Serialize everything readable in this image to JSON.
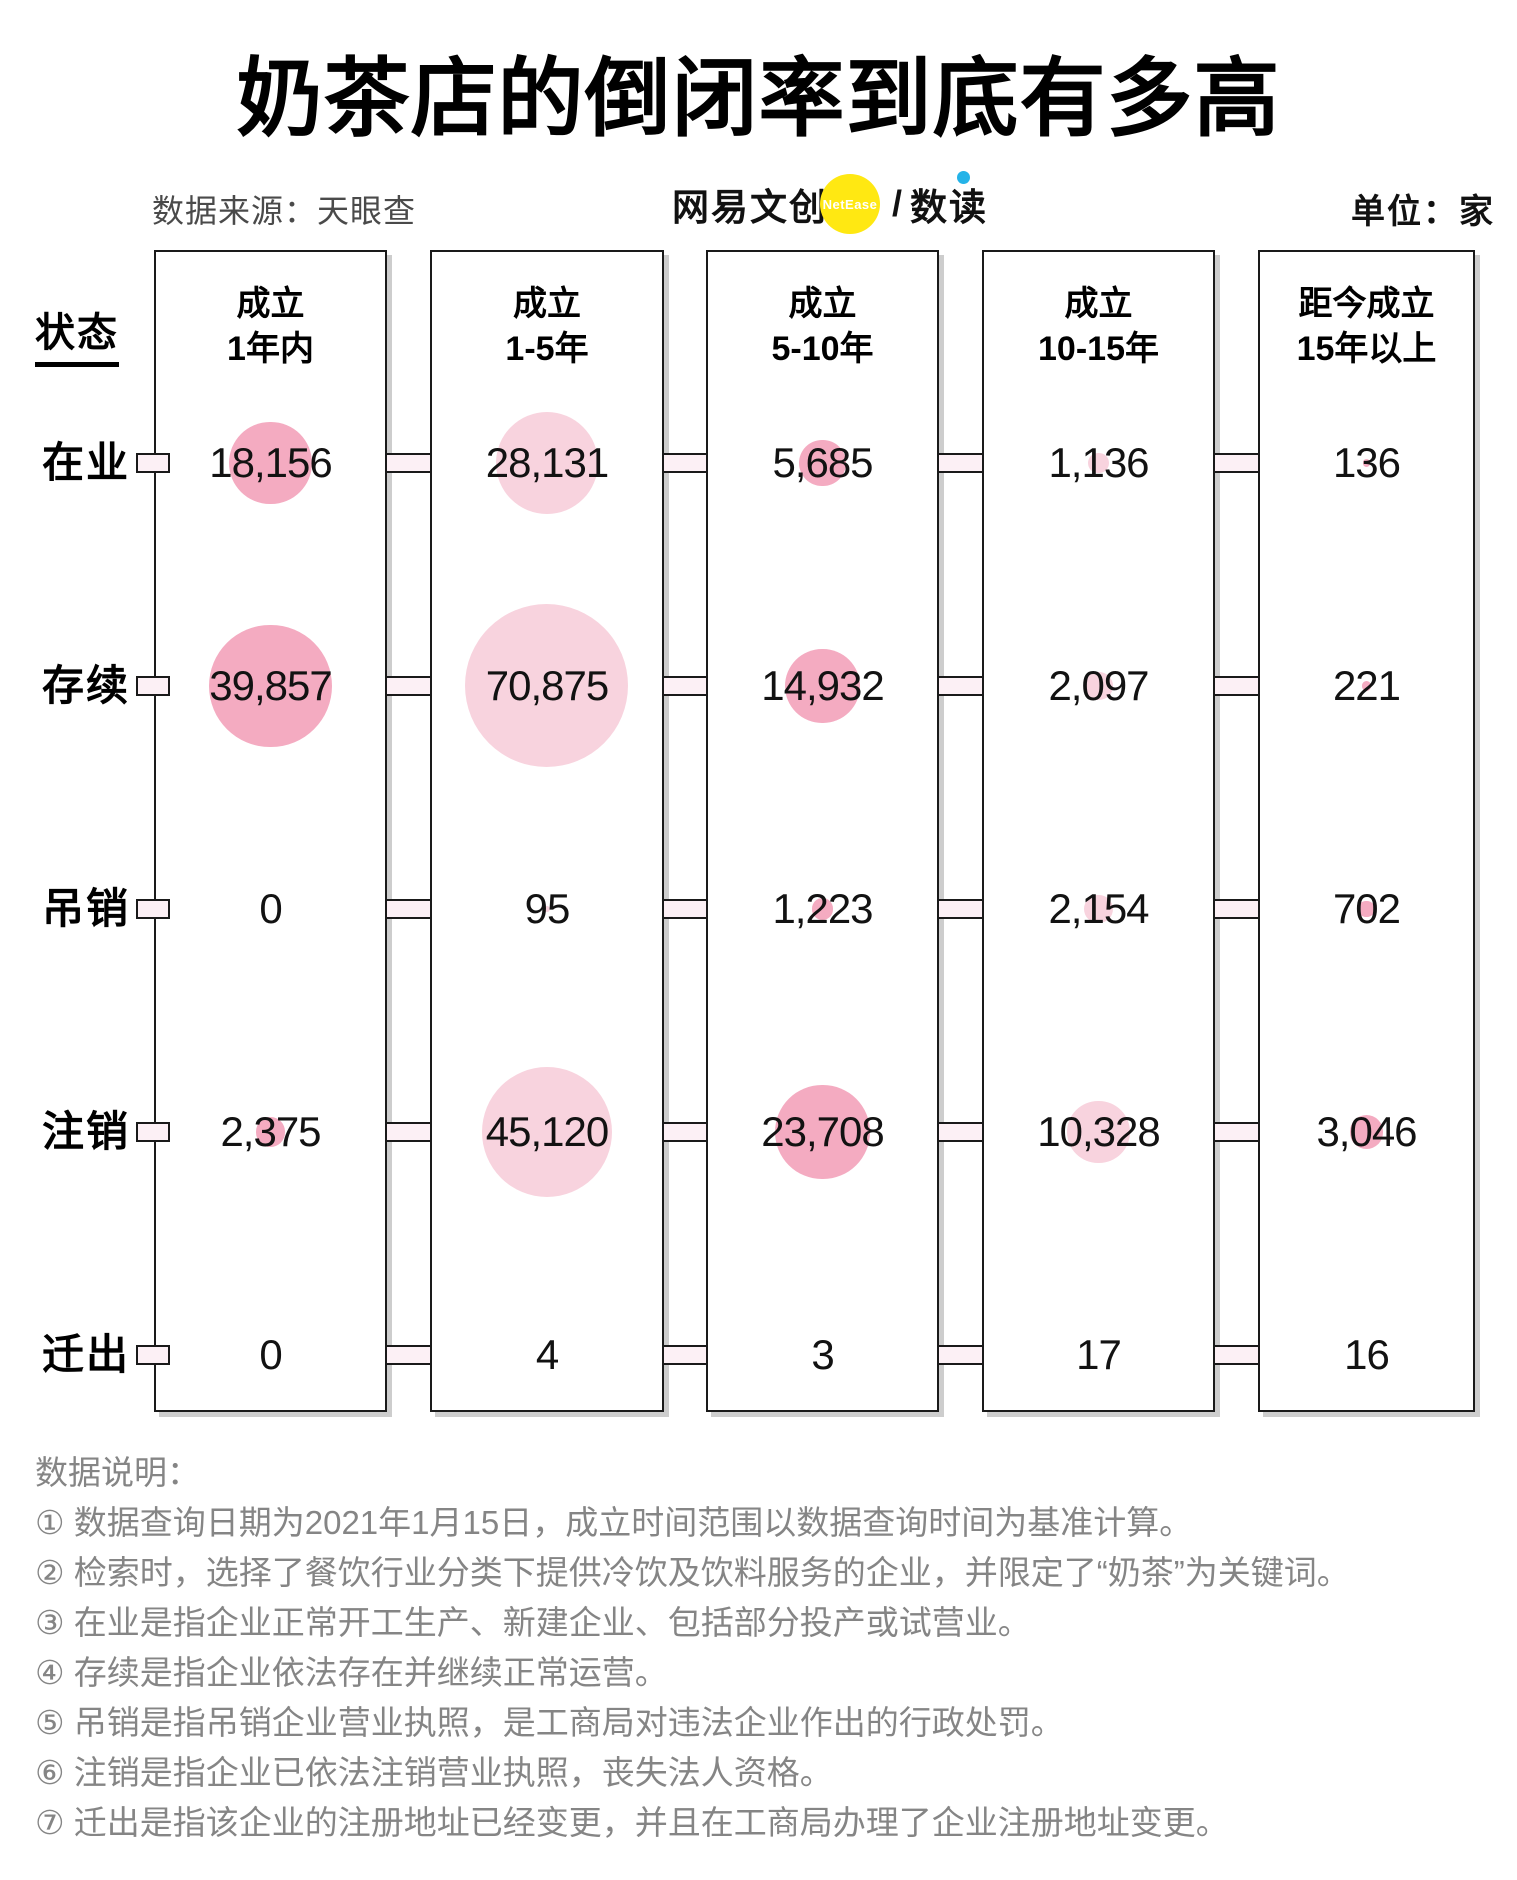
{
  "title": "奶茶店的倒闭率到底有多高",
  "header": {
    "source": "数据来源：天眼查",
    "brand": "网易文创",
    "brand_badge": "NetEase",
    "brand_divider": "/",
    "brand_product": "数读",
    "unit": "单位：家"
  },
  "chart_data": {
    "type": "bubble-matrix",
    "unit": "家",
    "status_axis_label": "状态",
    "columns": [
      {
        "line1": "成立",
        "line2": "1年内"
      },
      {
        "line1": "成立",
        "line2": "1-5年"
      },
      {
        "line1": "成立",
        "line2": "5-10年"
      },
      {
        "line1": "成立",
        "line2": "10-15年"
      },
      {
        "line1": "距今成立",
        "line2": "15年以上"
      }
    ],
    "rows": [
      "在业",
      "存续",
      "吊销",
      "注销",
      "迁出"
    ],
    "values": [
      [
        18156,
        28131,
        5685,
        1136,
        136
      ],
      [
        39857,
        70875,
        14932,
        2097,
        221
      ],
      [
        0,
        95,
        1223,
        2154,
        702
      ],
      [
        2375,
        45120,
        23708,
        10328,
        3046
      ],
      [
        0,
        4,
        3,
        17,
        16
      ]
    ],
    "display_values": [
      [
        "18,156",
        "28,131",
        "5,685",
        "1,136",
        "136"
      ],
      [
        "39,857",
        "70,875",
        "14,932",
        "2,097",
        "221"
      ],
      [
        "0",
        "95",
        "1,223",
        "2,154",
        "702"
      ],
      [
        "2,375",
        "45,120",
        "23,708",
        "10,328",
        "3,046"
      ],
      [
        "0",
        "4",
        "3",
        "17",
        "16"
      ]
    ],
    "bubble_colors_by_column": [
      "#f4abc1",
      "#f8d3de",
      "#f4abc1",
      "#f8d3de",
      "#f4abc1"
    ]
  },
  "notes": {
    "heading": "数据说明：",
    "items": [
      "① 数据查询日期为2021年1月15日，成立时间范围以数据查询时间为基准计算。",
      "② 检索时，选择了餐饮行业分类下提供冷饮及饮料服务的企业，并限定了“奶茶”为关键词。",
      "③ 在业是指企业正常开工生产、新建企业、包括部分投产或试营业。",
      "④ 存续是指企业依法存在并继续正常运营。",
      "⑤ 吊销是指吊销企业营业执照，是工商局对违法企业作出的行政处罚。",
      "⑥ 注销是指企业已依法注销营业执照，丧失法人资格。",
      "⑦ 迁出是指该企业的注册地址已经变更，并且在工商局办理了企业注册地址变更。"
    ]
  }
}
